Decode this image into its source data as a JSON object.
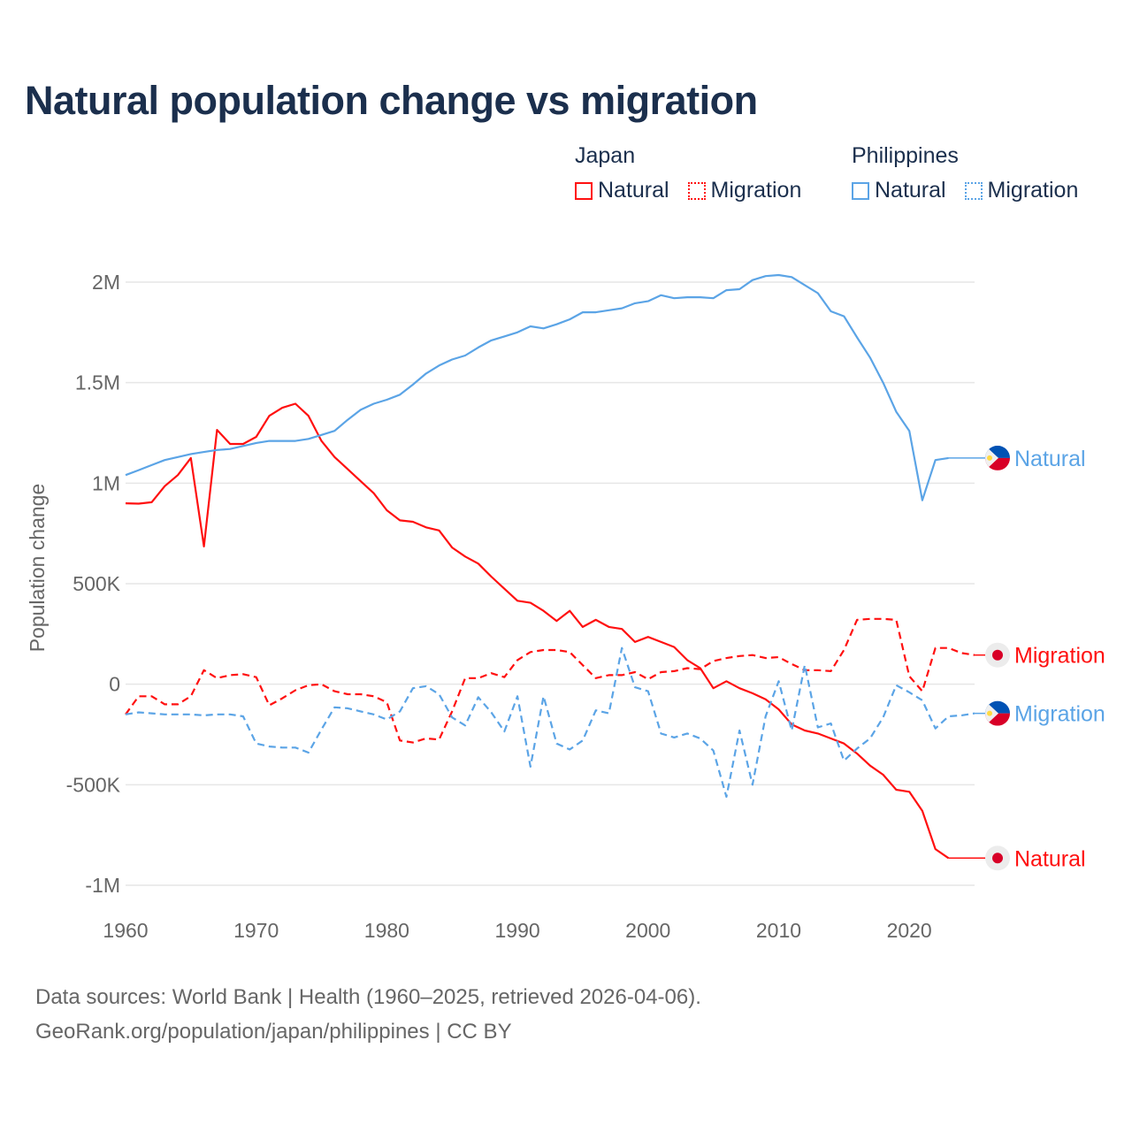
{
  "title": "Natural population change vs migration",
  "legend": {
    "groups": [
      {
        "name": "Japan",
        "items": [
          "Natural",
          "Migration"
        ],
        "color": "#ff1010"
      },
      {
        "name": "Philippines",
        "items": [
          "Natural",
          "Migration"
        ],
        "color": "#5ba4e6"
      }
    ]
  },
  "footer": {
    "line1": "Data sources: World Bank | Health (1960–2025, retrieved 2026-04-06).",
    "line2": "GeoRank.org/population/japan/philippines | CC BY"
  },
  "chart_data": {
    "type": "line",
    "title": "Natural population change vs migration",
    "xlabel": "",
    "ylabel": "Population change",
    "xlim": [
      1960,
      2025
    ],
    "ylim": [
      -1000000,
      2000000
    ],
    "x_ticks": [
      1960,
      1970,
      1980,
      1990,
      2000,
      2010,
      2020
    ],
    "y_ticks": [
      {
        "value": 2000000,
        "label": "2M"
      },
      {
        "value": 1500000,
        "label": "1.5M"
      },
      {
        "value": 1000000,
        "label": "1M"
      },
      {
        "value": 500000,
        "label": "500K"
      },
      {
        "value": 0,
        "label": "0"
      },
      {
        "value": -500000,
        "label": "-500K"
      },
      {
        "value": -1000000,
        "label": "-1M"
      }
    ],
    "grid": true,
    "legend_position": "top-right",
    "x_start": 1960,
    "series": [
      {
        "name": "Japan Natural",
        "end_label": "Natural",
        "country": "Japan",
        "color": "#ff1010",
        "dash": false,
        "values_k": [
          900,
          898,
          905,
          985,
          1040,
          1125,
          685,
          1265,
          1195,
          1195,
          1230,
          1335,
          1375,
          1395,
          1335,
          1210,
          1130,
          1070,
          1010,
          950,
          865,
          815,
          808,
          780,
          765,
          680,
          635,
          600,
          535,
          475,
          415,
          405,
          365,
          315,
          365,
          285,
          320,
          285,
          275,
          210,
          235,
          210,
          185,
          120,
          80,
          -20,
          15,
          -20,
          -45,
          -75,
          -125,
          -200,
          -230,
          -245,
          -270,
          -295,
          -345,
          -405,
          -450,
          -525,
          -535,
          -630,
          -820,
          -865
        ]
      },
      {
        "name": "Japan Migration",
        "end_label": "Migration",
        "country": "Japan",
        "color": "#ff1010",
        "dash": true,
        "values_k": [
          -150,
          -60,
          -60,
          -100,
          -100,
          -60,
          70,
          30,
          45,
          50,
          35,
          -105,
          -70,
          -30,
          -5,
          0,
          -35,
          -50,
          -50,
          -60,
          -90,
          -280,
          -290,
          -270,
          -275,
          -135,
          30,
          30,
          55,
          35,
          120,
          160,
          170,
          170,
          160,
          95,
          30,
          45,
          45,
          60,
          25,
          60,
          65,
          80,
          75,
          115,
          130,
          140,
          145,
          130,
          135,
          100,
          70,
          70,
          65,
          170,
          320,
          325,
          325,
          320,
          40,
          -35,
          180,
          180,
          155,
          145
        ]
      },
      {
        "name": "Philippines Natural",
        "end_label": "Natural",
        "country": "Philippines",
        "color": "#5ba4e6",
        "dash": false,
        "values_k": [
          1040,
          1065,
          1090,
          1115,
          1130,
          1145,
          1155,
          1165,
          1170,
          1185,
          1200,
          1210,
          1210,
          1210,
          1220,
          1240,
          1260,
          1315,
          1365,
          1395,
          1415,
          1440,
          1490,
          1545,
          1585,
          1615,
          1635,
          1675,
          1710,
          1730,
          1750,
          1780,
          1770,
          1790,
          1815,
          1850,
          1850,
          1860,
          1870,
          1895,
          1905,
          1935,
          1920,
          1925,
          1925,
          1920,
          1960,
          1965,
          2010,
          2030,
          2035,
          2025,
          1985,
          1945,
          1855,
          1830,
          1725,
          1625,
          1500,
          1355,
          1260,
          915,
          1115,
          1125
        ]
      },
      {
        "name": "Philippines Migration",
        "end_label": "Migration",
        "country": "Philippines",
        "color": "#5ba4e6",
        "dash": true,
        "values_k": [
          -150,
          -140,
          -145,
          -150,
          -150,
          -150,
          -155,
          -150,
          -150,
          -160,
          -295,
          -310,
          -315,
          -315,
          -340,
          -225,
          -115,
          -120,
          -135,
          -150,
          -175,
          -135,
          -20,
          -10,
          -50,
          -165,
          -205,
          -65,
          -140,
          -235,
          -60,
          -410,
          -60,
          -295,
          -325,
          -280,
          -130,
          -145,
          180,
          -15,
          -35,
          -245,
          -265,
          -245,
          -270,
          -330,
          -560,
          -230,
          -500,
          -160,
          15,
          -230,
          95,
          -215,
          -195,
          -380,
          -320,
          -270,
          -165,
          -5,
          -40,
          -80,
          -220,
          -160,
          -155,
          -145
        ]
      }
    ]
  }
}
